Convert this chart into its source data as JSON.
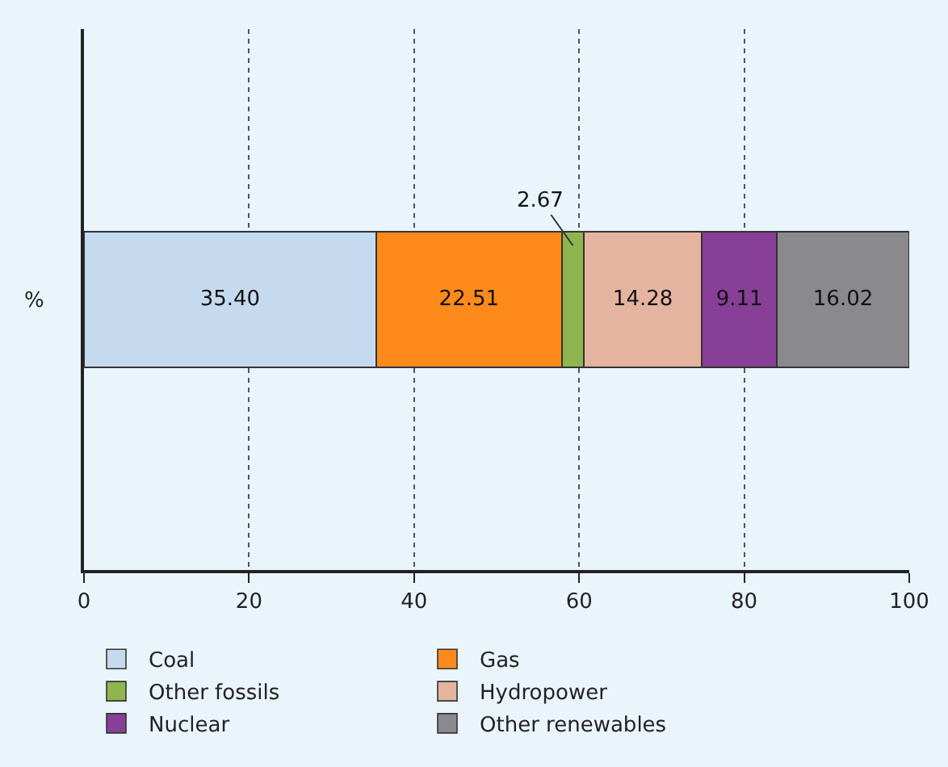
{
  "chart_data": {
    "type": "bar",
    "orientation": "horizontal",
    "stacked": true,
    "categories": [
      "%"
    ],
    "series": [
      {
        "name": "Coal",
        "color": "#c5daef",
        "values": [
          35.4
        ],
        "value_labels": [
          "35.40"
        ]
      },
      {
        "name": "Gas",
        "color": "#ff8a1c",
        "values": [
          22.51
        ],
        "value_labels": [
          "22.51"
        ]
      },
      {
        "name": "Other fossils",
        "color": "#8fb54e",
        "values": [
          2.67
        ],
        "value_labels": [
          "2.67"
        ]
      },
      {
        "name": "Hydropower",
        "color": "#e5b4a0",
        "values": [
          14.28
        ],
        "value_labels": [
          "14.28"
        ]
      },
      {
        "name": "Nuclear",
        "color": "#873f97",
        "values": [
          9.11
        ],
        "value_labels": [
          "9.11"
        ]
      },
      {
        "name": "Other renewables",
        "color": "#8a8a8e",
        "values": [
          16.02
        ],
        "value_labels": [
          "16.02"
        ]
      }
    ],
    "xlim": [
      0,
      100
    ],
    "xticks": [
      0,
      20,
      40,
      60,
      80,
      100
    ],
    "grid": "x",
    "legend": "bottom"
  }
}
